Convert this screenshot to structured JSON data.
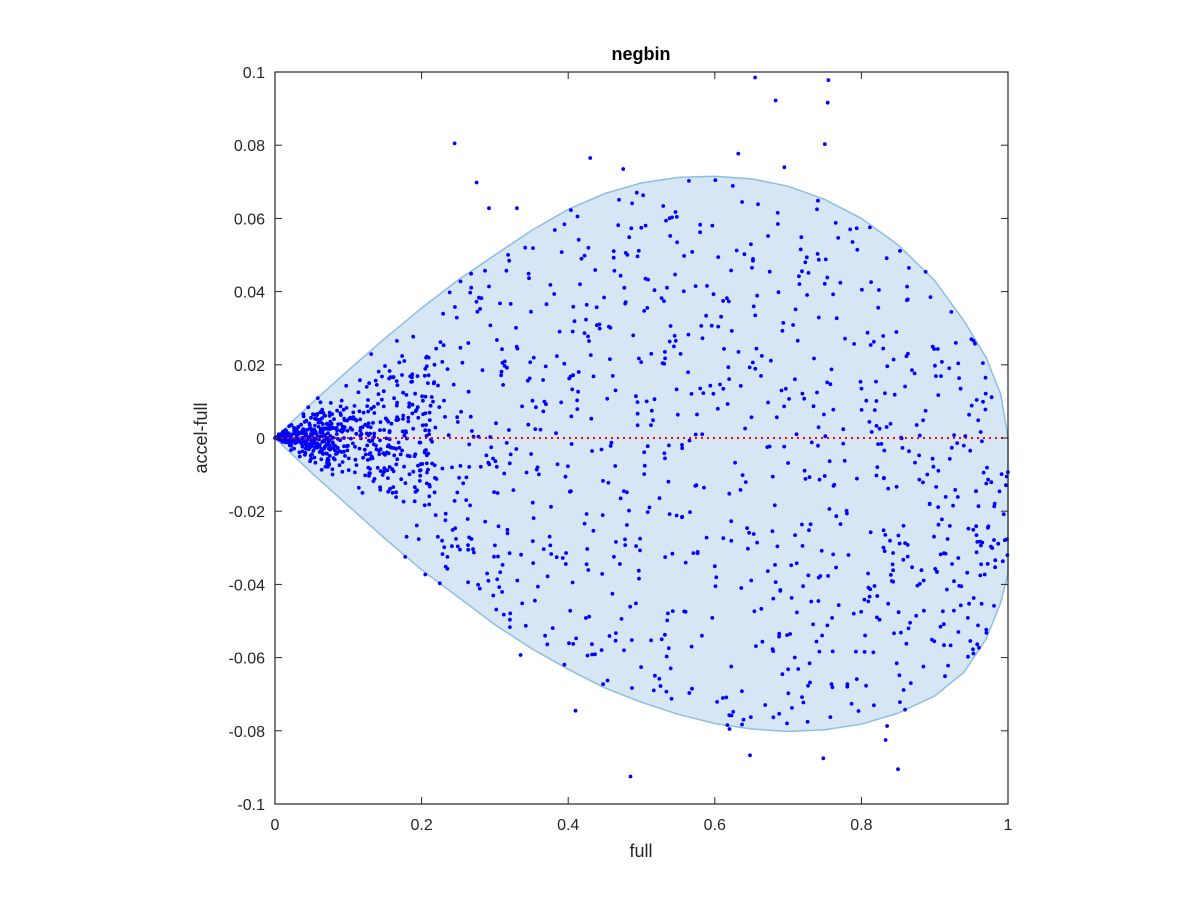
{
  "chart_data": {
    "type": "scatter",
    "title": "negbin",
    "xlabel": "full",
    "ylabel": "accel-full",
    "xlim": [
      0,
      1
    ],
    "ylim": [
      -0.1,
      0.1
    ],
    "xticks": [
      0,
      0.2,
      0.4,
      0.6,
      0.8,
      1
    ],
    "xtick_labels": [
      "0",
      "0.2",
      "0.4",
      "0.6",
      "0.8",
      "1"
    ],
    "yticks": [
      0.1,
      0.08,
      0.06,
      0.04,
      0.02,
      0,
      -0.02,
      -0.04,
      -0.06,
      -0.08,
      -0.1
    ],
    "ytick_labels": [
      "0.1",
      "0.08",
      "0.06",
      "0.04",
      "0.02",
      "0",
      "-0.02",
      "-0.04",
      "-0.06",
      "-0.08",
      "-0.1"
    ],
    "grid": false,
    "box": true,
    "colors": {
      "points": "#0000ff",
      "band_fill": "#d6e6f4",
      "band_edge": "#8dbfe0",
      "reference_line": "#ff0000",
      "axes": "#262626"
    },
    "reference_line": {
      "y": 0,
      "style": "dotted"
    },
    "band": {
      "upper": [
        [
          0,
          0
        ],
        [
          0.05,
          0.0095
        ],
        [
          0.1,
          0.0185
        ],
        [
          0.15,
          0.0272
        ],
        [
          0.2,
          0.0355
        ],
        [
          0.25,
          0.0432
        ],
        [
          0.3,
          0.05
        ],
        [
          0.35,
          0.0567
        ],
        [
          0.4,
          0.0625
        ],
        [
          0.45,
          0.0668
        ],
        [
          0.5,
          0.0697
        ],
        [
          0.55,
          0.0712
        ],
        [
          0.6,
          0.0715
        ],
        [
          0.65,
          0.0708
        ],
        [
          0.7,
          0.0688
        ],
        [
          0.75,
          0.0652
        ],
        [
          0.8,
          0.06
        ],
        [
          0.85,
          0.0528
        ],
        [
          0.9,
          0.043
        ],
        [
          0.94,
          0.032
        ],
        [
          0.97,
          0.022
        ],
        [
          0.99,
          0.012
        ],
        [
          1.0,
          0.0
        ]
      ],
      "lower": [
        [
          0,
          0
        ],
        [
          0.05,
          -0.0095
        ],
        [
          0.1,
          -0.0185
        ],
        [
          0.15,
          -0.0275
        ],
        [
          0.2,
          -0.036
        ],
        [
          0.25,
          -0.0435
        ],
        [
          0.3,
          -0.051
        ],
        [
          0.35,
          -0.0575
        ],
        [
          0.4,
          -0.0632
        ],
        [
          0.45,
          -0.0683
        ],
        [
          0.5,
          -0.0722
        ],
        [
          0.55,
          -0.0755
        ],
        [
          0.6,
          -0.078
        ],
        [
          0.65,
          -0.0795
        ],
        [
          0.7,
          -0.0802
        ],
        [
          0.75,
          -0.0797
        ],
        [
          0.8,
          -0.0782
        ],
        [
          0.85,
          -0.0752
        ],
        [
          0.9,
          -0.0705
        ],
        [
          0.94,
          -0.064
        ],
        [
          0.97,
          -0.055
        ],
        [
          0.99,
          -0.045
        ],
        [
          1.0,
          -0.037
        ]
      ]
    },
    "scatter": {
      "n": 1500,
      "seed": 7,
      "outliers": [
        [
          0.245,
          0.0805
        ],
        [
          0.43,
          0.0765
        ],
        [
          0.475,
          0.0735
        ],
        [
          0.655,
          0.0985
        ],
        [
          0.683,
          0.0922
        ],
        [
          0.755,
          0.0978
        ],
        [
          0.754,
          0.0916
        ],
        [
          0.75,
          0.0803
        ],
        [
          0.695,
          0.074
        ],
        [
          0.632,
          0.0777
        ],
        [
          0.275,
          0.0698
        ],
        [
          0.292,
          0.0628
        ],
        [
          0.33,
          0.0628
        ],
        [
          0.485,
          -0.0925
        ],
        [
          0.41,
          -0.0745
        ],
        [
          0.487,
          -0.0683
        ],
        [
          0.62,
          -0.0795
        ],
        [
          0.648,
          -0.0867
        ],
        [
          0.748,
          -0.0875
        ],
        [
          0.68,
          -0.0763
        ],
        [
          0.719,
          -0.0708
        ],
        [
          0.835,
          -0.0787
        ],
        [
          0.833,
          -0.0825
        ],
        [
          0.85,
          -0.0905
        ],
        [
          0.335,
          -0.0593
        ],
        [
          0.205,
          -0.0373
        ],
        [
          0.0,
          0.0
        ],
        [
          0.005,
          0.001
        ],
        [
          0.01,
          -0.001
        ],
        [
          0.015,
          0.002
        ],
        [
          0.02,
          -0.002
        ]
      ]
    }
  }
}
